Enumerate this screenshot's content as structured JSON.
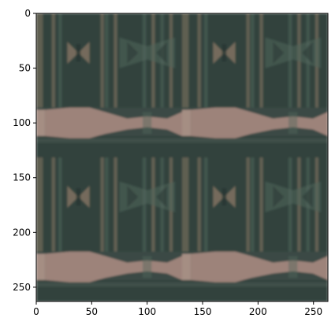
{
  "chart_data": {
    "type": "heatmap",
    "title": "",
    "xlabel": "",
    "ylabel": "",
    "xlim": [
      0,
      263
    ],
    "ylim": [
      263,
      0
    ],
    "image_size": [
      263,
      263
    ],
    "x_ticks": [
      0,
      50,
      100,
      150,
      200,
      250
    ],
    "y_ticks": [
      0,
      50,
      100,
      150,
      200,
      250
    ],
    "grid": false,
    "legend": "none",
    "pattern": {
      "kind": "kaleidoscope tile",
      "tile_repeat_x": 2,
      "tile_repeat_y": 2,
      "colors": {
        "background": "#3a4a45",
        "dark_shade": "#26332f",
        "mid_green": "#52675c",
        "pink_band": "#a88a80",
        "pink_light": "#b89a8e",
        "tan": "#8b7a66"
      }
    }
  }
}
